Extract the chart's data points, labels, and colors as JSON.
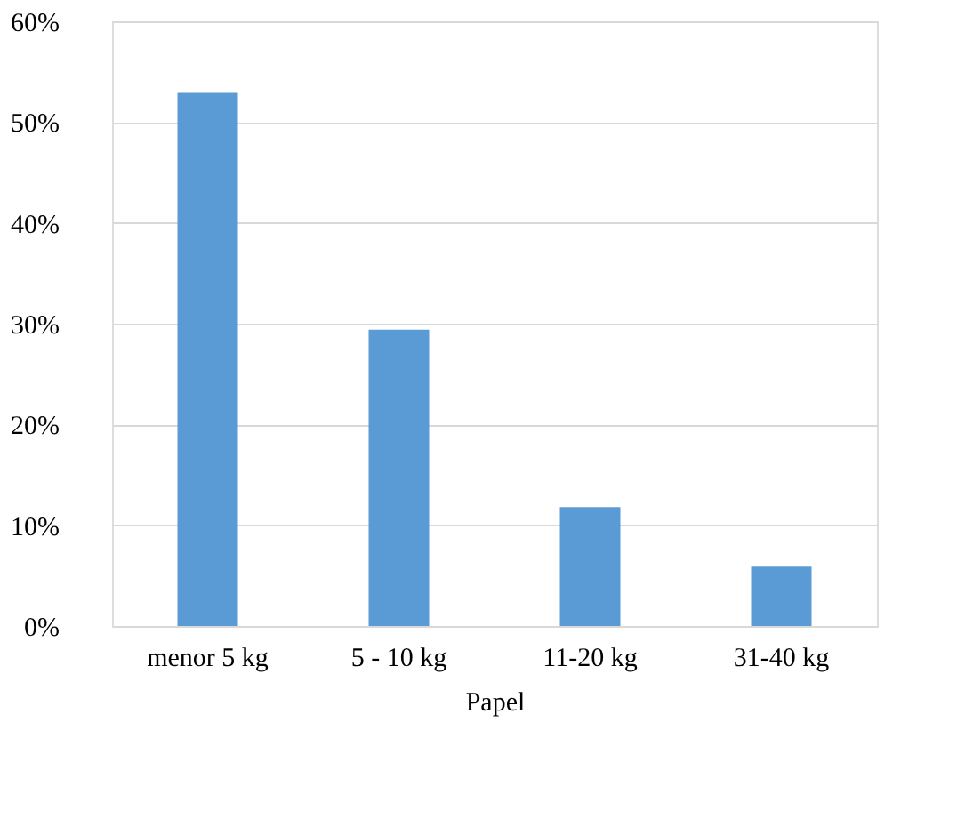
{
  "chart_data": {
    "type": "bar",
    "xlabel": "Papel",
    "categories": [
      "menor 5 kg",
      "5 - 10 kg",
      "11-20 kg",
      "31-40 kg"
    ],
    "values": [
      52.9,
      29.4,
      11.8,
      5.9
    ],
    "color": "#5b9bd5",
    "ylim": [
      0,
      60
    ],
    "yticks": [
      {
        "value": 0,
        "label": "0%"
      },
      {
        "value": 10,
        "label": "10%"
      },
      {
        "value": 20,
        "label": "20%"
      },
      {
        "value": 30,
        "label": "30%"
      },
      {
        "value": 40,
        "label": "40%"
      },
      {
        "value": 50,
        "label": "50%"
      },
      {
        "value": 60,
        "label": "60%"
      }
    ],
    "grid": "y"
  }
}
